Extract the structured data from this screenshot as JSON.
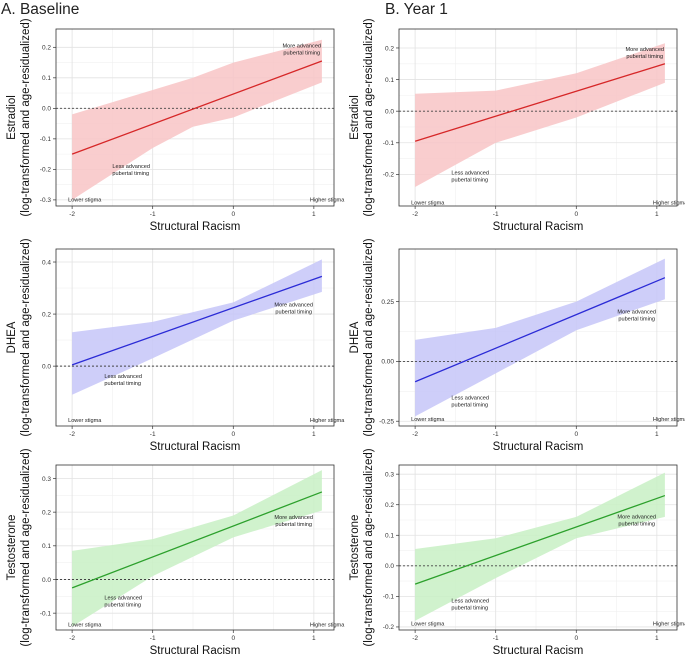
{
  "columns": {
    "a": "A. Baseline",
    "b": "B. Year 1"
  },
  "chart_data": [
    {
      "id": "A1",
      "type": "line",
      "column": "A. Baseline",
      "xlabel": "Structural Racism",
      "ylabel": "Estradiol",
      "ylabel2": "(log-transformed and age-residualized)",
      "xlim": [
        -2.2,
        1.25
      ],
      "ylim": [
        -0.32,
        0.26
      ],
      "xticks": [
        -2,
        -1,
        0,
        1
      ],
      "yticks": [
        -0.3,
        -0.2,
        -0.1,
        0.0,
        0.1,
        0.2
      ],
      "ytick_labels": [
        "-0.3",
        "-0.2",
        "-0.1",
        "0.0",
        "0.1",
        "0.2"
      ],
      "color": "#d62728",
      "fill": "#f8c4c6",
      "line": {
        "x": [
          -2,
          1.1
        ],
        "y": [
          -0.15,
          0.155
        ]
      },
      "band": {
        "x": [
          -2,
          -1,
          -0.5,
          0,
          1.1
        ],
        "upper": [
          -0.02,
          0.06,
          0.1,
          0.15,
          0.225
        ],
        "lower": [
          -0.3,
          -0.13,
          -0.06,
          -0.03,
          0.085
        ]
      },
      "reference_y": 0,
      "annotations": [
        {
          "text": "More advanced\npubertal timing",
          "x": 0.85,
          "y": 0.2
        },
        {
          "text": "Less advanced\npubertal timing",
          "x": -1.5,
          "y": -0.195
        },
        {
          "text": "Lower stigma",
          "x": -2.05,
          "y": -0.305
        },
        {
          "text": "Higher stigma",
          "x": 0.95,
          "y": -0.305
        }
      ]
    },
    {
      "id": "B1",
      "type": "line",
      "column": "B. Year 1",
      "xlabel": "Structural Racism",
      "ylabel": "Estradiol",
      "ylabel2": "(log-transformed and age-residualized)",
      "xlim": [
        -2.2,
        1.25
      ],
      "ylim": [
        -0.3,
        0.26
      ],
      "xticks": [
        -2,
        -1,
        0,
        1
      ],
      "yticks": [
        -0.2,
        -0.1,
        0.0,
        0.1,
        0.2
      ],
      "ytick_labels": [
        "-0.2",
        "-0.1",
        "0.0",
        "0.1",
        "0.2"
      ],
      "color": "#d62728",
      "fill": "#f8c4c6",
      "line": {
        "x": [
          -2,
          1.1
        ],
        "y": [
          -0.095,
          0.15
        ]
      },
      "band": {
        "x": [
          -2,
          -1,
          0,
          1.1
        ],
        "upper": [
          0.055,
          0.065,
          0.12,
          0.215
        ],
        "lower": [
          -0.24,
          -0.1,
          -0.02,
          0.09
        ]
      },
      "reference_y": 0,
      "annotations": [
        {
          "text": "More advanced\npubertal timing",
          "x": 0.85,
          "y": 0.19
        },
        {
          "text": "Less advanced\npubertal timing",
          "x": -1.55,
          "y": -0.2
        },
        {
          "text": "Lower stigma",
          "x": -2.05,
          "y": -0.295
        },
        {
          "text": "Higher stigma",
          "x": 0.95,
          "y": -0.295
        }
      ]
    },
    {
      "id": "A2",
      "type": "line",
      "column": "A. Baseline",
      "xlabel": "Structural Racism",
      "ylabel": "DHEA",
      "ylabel2": "(log-transformed and age-residualized)",
      "xlim": [
        -2.2,
        1.25
      ],
      "ylim": [
        -0.23,
        0.45
      ],
      "xticks": [
        -2,
        -1,
        0,
        1
      ],
      "yticks": [
        0.0,
        0.2,
        0.4
      ],
      "ytick_labels": [
        "0.0",
        "0.2",
        "0.4"
      ],
      "color": "#2b2bd6",
      "fill": "#c6c6f8",
      "line": {
        "x": [
          -2,
          1.1
        ],
        "y": [
          0.005,
          0.345
        ]
      },
      "band": {
        "x": [
          -2,
          -1,
          0,
          1.1
        ],
        "upper": [
          0.13,
          0.17,
          0.245,
          0.41
        ],
        "lower": [
          -0.11,
          0.03,
          0.175,
          0.285
        ]
      },
      "reference_y": 0,
      "annotations": [
        {
          "text": "More advanced\npubertal timing",
          "x": 0.75,
          "y": 0.23
        },
        {
          "text": "Less advanced\npubertal timing",
          "x": -1.6,
          "y": -0.045
        },
        {
          "text": "Lower stigma",
          "x": -2.05,
          "y": -0.215
        },
        {
          "text": "Higher stigma",
          "x": 0.95,
          "y": -0.215
        }
      ]
    },
    {
      "id": "B2",
      "type": "line",
      "column": "B. Year 1",
      "xlabel": "Structural Racism",
      "ylabel": "DHEA",
      "ylabel2": "(log-transformed and age-residualized)",
      "xlim": [
        -2.2,
        1.25
      ],
      "ylim": [
        -0.27,
        0.47
      ],
      "xticks": [
        -2,
        -1,
        0,
        1
      ],
      "yticks": [
        -0.25,
        0.0,
        0.25
      ],
      "ytick_labels": [
        "-0.25",
        "0.00",
        "0.25"
      ],
      "color": "#2b2bd6",
      "fill": "#c6c6f8",
      "line": {
        "x": [
          -2,
          1.1
        ],
        "y": [
          -0.085,
          0.35
        ]
      },
      "band": {
        "x": [
          -2,
          -1,
          0,
          1.1
        ],
        "upper": [
          0.09,
          0.14,
          0.25,
          0.43
        ],
        "lower": [
          -0.23,
          -0.05,
          0.13,
          0.26
        ]
      },
      "reference_y": 0,
      "annotations": [
        {
          "text": "More advanced\npubertal timing",
          "x": 0.75,
          "y": 0.2
        },
        {
          "text": "Less advanced\npubertal timing",
          "x": -1.55,
          "y": -0.16
        },
        {
          "text": "Lower stigma",
          "x": -2.05,
          "y": -0.25
        },
        {
          "text": "Higher stigma",
          "x": 0.95,
          "y": -0.25
        }
      ]
    },
    {
      "id": "A3",
      "type": "line",
      "column": "A. Baseline",
      "xlabel": "Structural Racism",
      "ylabel": "Testosterone",
      "ylabel2": "(log-transformed and age-residualized)",
      "xlim": [
        -2.2,
        1.25
      ],
      "ylim": [
        -0.15,
        0.34
      ],
      "xticks": [
        -2,
        -1,
        0,
        1
      ],
      "yticks": [
        -0.1,
        0.0,
        0.1,
        0.2,
        0.3
      ],
      "ytick_labels": [
        "-0.1",
        "0.0",
        "0.1",
        "0.2",
        "0.3"
      ],
      "color": "#2ca02c",
      "fill": "#c8f0c4",
      "line": {
        "x": [
          -2,
          1.1
        ],
        "y": [
          -0.025,
          0.26
        ]
      },
      "band": {
        "x": [
          -2,
          -1,
          0,
          1.1
        ],
        "upper": [
          0.085,
          0.12,
          0.19,
          0.325
        ],
        "lower": [
          -0.14,
          0.01,
          0.125,
          0.205
        ]
      },
      "reference_y": 0,
      "annotations": [
        {
          "text": "More advanced\npubertal timing",
          "x": 0.75,
          "y": 0.18
        },
        {
          "text": "Less advanced\npubertal timing",
          "x": -1.6,
          "y": -0.06
        },
        {
          "text": "Lower stigma",
          "x": -2.05,
          "y": -0.14
        },
        {
          "text": "Higher stigma",
          "x": 0.95,
          "y": -0.14
        }
      ]
    },
    {
      "id": "B3",
      "type": "line",
      "column": "B. Year 1",
      "xlabel": "Structural Racism",
      "ylabel": "Testosterone",
      "ylabel2": "(log-transformed and age-residualized)",
      "xlim": [
        -2.2,
        1.25
      ],
      "ylim": [
        -0.21,
        0.33
      ],
      "xticks": [
        -2,
        -1,
        0,
        1
      ],
      "yticks": [
        -0.2,
        -0.1,
        0.0,
        0.1,
        0.2,
        0.3
      ],
      "ytick_labels": [
        "-0.2",
        "-0.1",
        "0.0",
        "0.1",
        "0.2",
        "0.3"
      ],
      "color": "#2ca02c",
      "fill": "#c8f0c4",
      "line": {
        "x": [
          -2,
          1.1
        ],
        "y": [
          -0.06,
          0.23
        ]
      },
      "band": {
        "x": [
          -2,
          -1,
          0,
          1.1
        ],
        "upper": [
          0.055,
          0.09,
          0.16,
          0.305
        ],
        "lower": [
          -0.18,
          -0.04,
          0.09,
          0.16
        ]
      },
      "reference_y": 0,
      "annotations": [
        {
          "text": "More advanced\npubertal timing",
          "x": 0.75,
          "y": 0.155
        },
        {
          "text": "Less advanced\npubertal timing",
          "x": -1.55,
          "y": -0.12
        },
        {
          "text": "Lower stigma",
          "x": -2.05,
          "y": -0.195
        },
        {
          "text": "Higher stigma",
          "x": 0.95,
          "y": -0.195
        }
      ]
    }
  ]
}
